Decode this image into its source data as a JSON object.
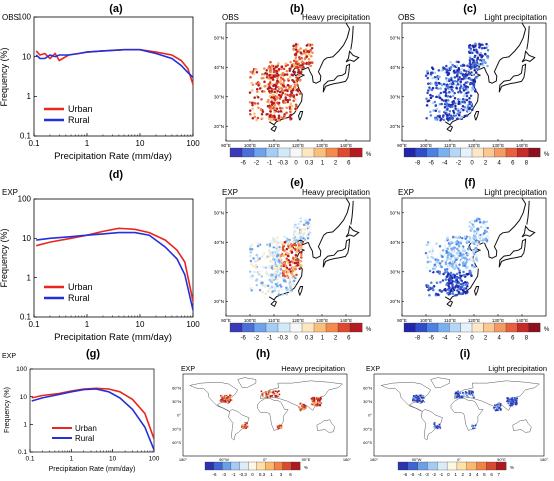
{
  "colors": {
    "urban": "#e8281e",
    "rural": "#2430d8",
    "land": "#ffffff",
    "coast": "#111111",
    "heavy_scale": [
      "#3a39b8",
      "#4a6fd6",
      "#6fa2ea",
      "#a4cdf2",
      "#d3e9f8",
      "#f7f7f7",
      "#fde6c0",
      "#fbbf7c",
      "#f38a4e",
      "#de4a2e",
      "#b41a22"
    ],
    "light_scale": [
      "#2325a8",
      "#2f4ec8",
      "#4b82e2",
      "#7bb0ef",
      "#b5d6f6",
      "#e6f1fb",
      "#fde7c8",
      "#fbc792",
      "#f49a63",
      "#e5623d",
      "#c8292a",
      "#8e0f1c"
    ],
    "global_scale": [
      "#2c33b0",
      "#3f66d0",
      "#6aa0e6",
      "#a6cbf2",
      "#dbecf9",
      "#fbf8e4",
      "#fde1a6",
      "#fbb86e",
      "#f08447",
      "#d94a31",
      "#aa1b21"
    ]
  },
  "charts": {
    "a": {
      "tag": "(a)",
      "corner": "OBS",
      "xlabel": "Precipitation Rate (mm/day)",
      "ylabel": "Frequency (%)",
      "xticks": [
        "0.1",
        "1",
        "10",
        "100"
      ],
      "yticks": [
        "100",
        "10",
        "1",
        "0.1"
      ],
      "legend": [
        "Urban",
        "Rural"
      ]
    },
    "d": {
      "tag": "(d)",
      "corner": "EXP",
      "xlabel": "Precipitation Rate (mm/day)",
      "ylabel": "Frequency (%)",
      "xticks": [
        "0.1",
        "1",
        "10",
        "100"
      ],
      "yticks": [
        "100",
        "10",
        "1",
        "0.1"
      ],
      "legend": [
        "Urban",
        "Rural"
      ]
    },
    "g": {
      "tag": "(g)",
      "corner": "EXP",
      "xlabel": "Precipitation Rate (mm/day)",
      "ylabel": "Frequency (%)",
      "xticks": [
        "0.1",
        "1",
        "10",
        "100"
      ],
      "yticks": [
        "100",
        "10",
        "1",
        "0.1"
      ],
      "legend": [
        "Urban",
        "Rural"
      ]
    }
  },
  "chart_data": [
    {
      "type": "line",
      "panel": "(a)",
      "x_scale": "log",
      "y_scale": "log",
      "xlim": [
        0.1,
        100
      ],
      "ylim": [
        0.1,
        100
      ],
      "xlabel": "Precipitation Rate (mm/day)",
      "ylabel": "Frequency (%)",
      "series": [
        {
          "name": "Urban",
          "x": [
            0.11,
            0.13,
            0.16,
            0.2,
            0.25,
            0.3,
            0.45,
            0.7,
            1,
            2,
            5,
            10,
            20,
            40,
            60,
            80,
            100
          ],
          "y": [
            14,
            11,
            12,
            9,
            12,
            8,
            11,
            12,
            13,
            14,
            15,
            15,
            13,
            11,
            8,
            5,
            2
          ]
        },
        {
          "name": "Rural",
          "x": [
            0.11,
            0.13,
            0.16,
            0.2,
            0.25,
            0.3,
            0.45,
            0.7,
            1,
            2,
            5,
            10,
            20,
            40,
            60,
            80,
            100
          ],
          "y": [
            11,
            9,
            9,
            11,
            10,
            11,
            11,
            12,
            13,
            14,
            15,
            15,
            12,
            9,
            6,
            4,
            3
          ]
        }
      ]
    },
    {
      "type": "line",
      "panel": "(d)",
      "x_scale": "log",
      "y_scale": "log",
      "xlim": [
        0.1,
        100
      ],
      "ylim": [
        0.1,
        100
      ],
      "xlabel": "Precipitation Rate (mm/day)",
      "ylabel": "Frequency (%)",
      "series": [
        {
          "name": "Urban",
          "x": [
            0.11,
            0.2,
            0.5,
            1,
            2,
            4,
            8,
            15,
            30,
            50,
            70,
            100
          ],
          "y": [
            6.5,
            8,
            10,
            12,
            15,
            18,
            17,
            14,
            9,
            5,
            2.5,
            0.25
          ]
        },
        {
          "name": "Rural",
          "x": [
            0.11,
            0.2,
            0.5,
            1,
            2,
            4,
            8,
            15,
            30,
            50,
            70,
            100
          ],
          "y": [
            9,
            10,
            11,
            12,
            13,
            14,
            14,
            12,
            6,
            3,
            1.2,
            0.15
          ]
        }
      ]
    },
    {
      "type": "line",
      "panel": "(g)",
      "x_scale": "log",
      "y_scale": "log",
      "xlim": [
        0.1,
        100
      ],
      "ylim": [
        0.1,
        100
      ],
      "xlabel": "Precipitation Rate (mm/day)",
      "ylabel": "Frequency (%)",
      "series": [
        {
          "name": "Urban",
          "x": [
            0.11,
            0.2,
            0.5,
            1,
            2,
            4,
            8,
            15,
            30,
            60,
            100
          ],
          "y": [
            9,
            11,
            13,
            16,
            19,
            20,
            19,
            15,
            8,
            2.5,
            0.3
          ]
        },
        {
          "name": "Rural",
          "x": [
            0.11,
            0.2,
            0.5,
            1,
            2,
            4,
            8,
            15,
            30,
            60,
            100
          ],
          "y": [
            7,
            9,
            12,
            15,
            18,
            19,
            15,
            9,
            3.5,
            0.8,
            0.12
          ]
        }
      ]
    }
  ],
  "maps": {
    "b": {
      "tag": "(b)",
      "corner": "OBS",
      "title": "Heavy precipitation",
      "lat": [
        "50°N",
        "40°N",
        "30°N",
        "20°N"
      ],
      "lon": [
        "90°E",
        "100°E",
        "110°E",
        "120°E",
        "130°E",
        "140°E"
      ],
      "colorbar": [
        "-6",
        "-2",
        "-1",
        "-0.3",
        "0",
        "0.3",
        "1",
        "2",
        "6"
      ],
      "unit": "%",
      "scale": "heavy_scale"
    },
    "c": {
      "tag": "(c)",
      "corner": "OBS",
      "title": "Light precipitation",
      "lat": [
        "50°N",
        "40°N",
        "30°N",
        "20°N"
      ],
      "lon": [
        "90°E",
        "100°E",
        "110°E",
        "120°E",
        "130°E",
        "140°E"
      ],
      "colorbar": [
        "-8",
        "-6",
        "-4",
        "-2",
        "0",
        "2",
        "4",
        "6",
        "8"
      ],
      "unit": "%",
      "scale": "light_scale"
    },
    "e": {
      "tag": "(e)",
      "corner": "EXP",
      "title": "Heavy precipitation",
      "lat": [
        "50°N",
        "40°N",
        "30°N",
        "20°N"
      ],
      "lon": [
        "90°E",
        "100°E",
        "110°E",
        "120°E",
        "130°E",
        "140°E"
      ],
      "colorbar": [
        "-6",
        "-2",
        "-1",
        "-0.3",
        "0",
        "0.3",
        "1",
        "2",
        "6"
      ],
      "unit": "%",
      "scale": "heavy_scale"
    },
    "f": {
      "tag": "(f)",
      "corner": "EXP",
      "title": "Light precipitation",
      "lat": [
        "50°N",
        "40°N",
        "30°N",
        "20°N"
      ],
      "lon": [
        "90°E",
        "100°E",
        "110°E",
        "120°E",
        "130°E",
        "140°E"
      ],
      "colorbar": [
        "-8",
        "-6",
        "-4",
        "-2",
        "0",
        "2",
        "4",
        "6",
        "8"
      ],
      "unit": "%",
      "scale": "light_scale"
    },
    "h": {
      "tag": "(h)",
      "corner": "EXP",
      "title": "Heavy precipitation",
      "lat": [
        "60°N",
        "30°N",
        "0°",
        "30°S",
        "60°S"
      ],
      "lon": [
        "180°",
        "90°W",
        "0°",
        "90°E",
        "180°"
      ],
      "colorbar": [
        "-6",
        "-3",
        "-1",
        "-0.3",
        "0",
        "0.3",
        "1",
        "3",
        "6"
      ],
      "unit": "%",
      "scale": "global_scale"
    },
    "i": {
      "tag": "(i)",
      "corner": "EXP",
      "title": "Light precipitation",
      "lat": [
        "60°N",
        "30°N",
        "0°",
        "30°S",
        "60°S"
      ],
      "lon": [
        "180°",
        "90°W",
        "0°",
        "90°E",
        "180°"
      ],
      "colorbar": [
        "-6",
        "-5",
        "-4",
        "-3",
        "-2",
        "-1",
        "0",
        "1",
        "2",
        "3",
        "4",
        "5",
        "6",
        "7"
      ],
      "unit": "%",
      "scale": "global_scale"
    }
  }
}
